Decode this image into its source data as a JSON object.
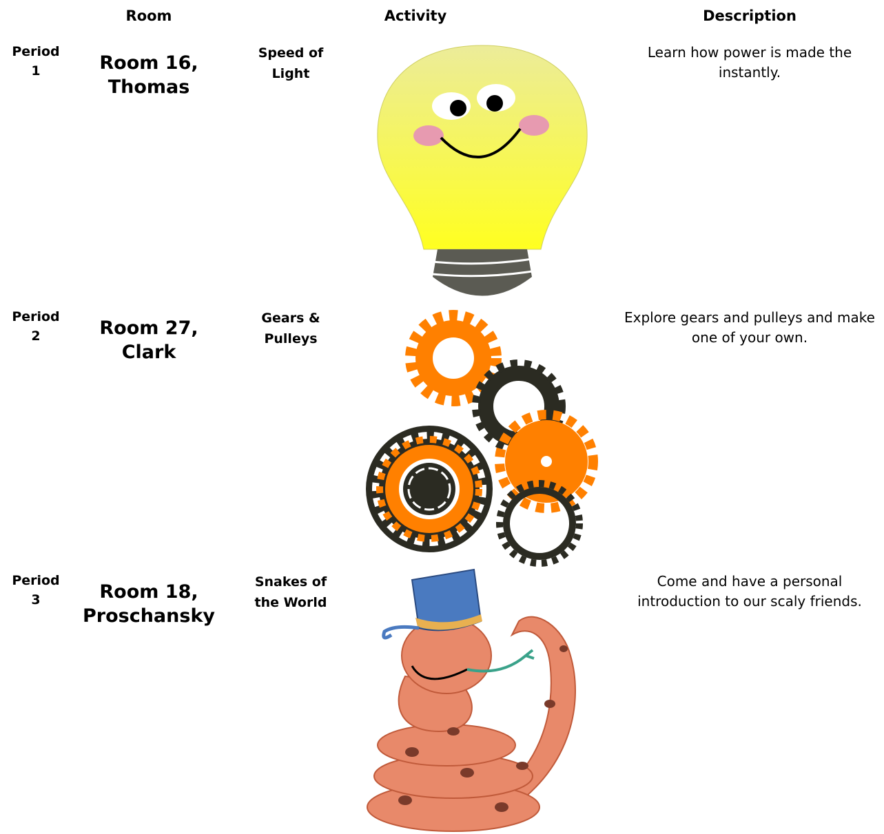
{
  "header": {
    "room": "Room",
    "activity": "Activity",
    "description": "Description"
  },
  "rows": [
    {
      "period": "Period 1",
      "room": "Room 16, Thomas",
      "activity": "Speed of Light",
      "description": "Learn how power is made the instantly."
    },
    {
      "period": "Period 2",
      "room": "Room 27, Clark",
      "activity": "Gears & Pulleys",
      "description": "Explore gears and pulleys and make one of your own."
    },
    {
      "period": "Period 3",
      "room": "Room 18, Proschansky",
      "activity": "Snakes of the World",
      "description": "Come and have a personal introduction to our scaly friends."
    }
  ]
}
